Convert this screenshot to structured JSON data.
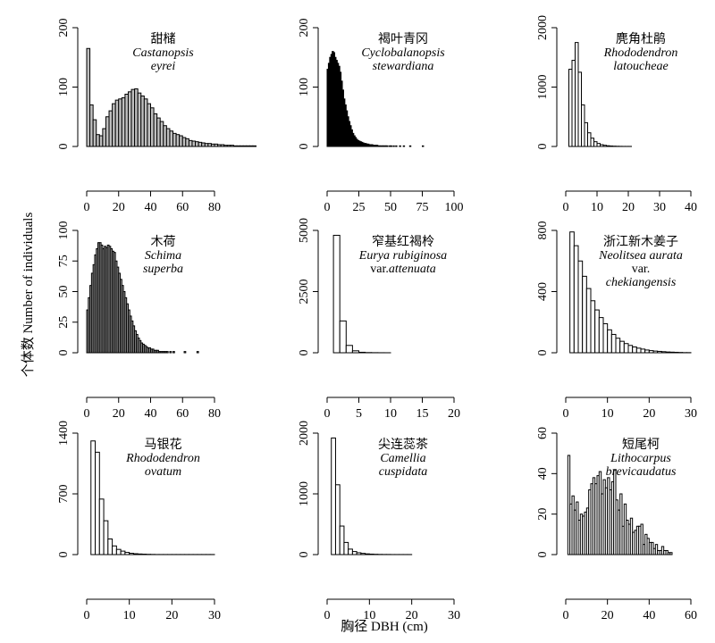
{
  "chart_data": [
    {
      "type": "bar",
      "panel": "1",
      "label_lines": [
        {
          "text": "甜槠",
          "italic": false,
          "cn": true
        },
        {
          "text": "Castanopsis",
          "italic": true
        },
        {
          "text": "eyrei",
          "italic": true
        }
      ],
      "fill": "#bfbfbf",
      "xlim": [
        0,
        80
      ],
      "ylim": [
        0,
        200
      ],
      "xticks": [
        0,
        20,
        40,
        60,
        80
      ],
      "yticks": [
        0,
        100,
        200
      ],
      "bin_start": 0,
      "bin_width": 2,
      "values": [
        165,
        70,
        45,
        20,
        18,
        30,
        50,
        60,
        72,
        78,
        80,
        82,
        88,
        92,
        96,
        97,
        90,
        85,
        80,
        72,
        65,
        55,
        48,
        42,
        35,
        30,
        26,
        22,
        20,
        18,
        15,
        13,
        10,
        9,
        8,
        7,
        6,
        5,
        5,
        4,
        4,
        3,
        3,
        2,
        2,
        2,
        1,
        1,
        1,
        1,
        1,
        1,
        1,
        0,
        0,
        0,
        0,
        0,
        0,
        0
      ]
    },
    {
      "type": "bar",
      "panel": "2",
      "label_lines": [
        {
          "text": "褐叶青冈",
          "italic": false,
          "cn": true
        },
        {
          "text": "Cyclobalanopsis",
          "italic": true
        },
        {
          "text": "stewardiana",
          "italic": true
        }
      ],
      "fill": "#000000",
      "xlim": [
        0,
        100
      ],
      "ylim": [
        0,
        200
      ],
      "xticks": [
        0,
        25,
        50,
        75,
        100
      ],
      "yticks": [
        0,
        100,
        200
      ],
      "bin_start": 0,
      "bin_width": 1,
      "values": [
        130,
        140,
        150,
        155,
        160,
        158,
        150,
        145,
        140,
        135,
        125,
        110,
        95,
        80,
        70,
        60,
        50,
        42,
        35,
        28,
        22,
        18,
        15,
        12,
        10,
        9,
        8,
        7,
        6,
        5,
        5,
        4,
        4,
        3,
        3,
        3,
        2,
        2,
        2,
        2,
        1,
        1,
        1,
        1,
        1,
        1,
        1,
        1,
        0,
        1,
        1,
        0,
        1,
        0,
        1,
        0,
        0,
        1,
        0,
        0,
        1,
        0,
        0,
        0,
        0,
        1,
        0,
        0,
        0,
        0,
        0,
        0,
        0,
        0,
        0,
        1,
        0,
        0,
        0,
        0,
        0,
        0,
        0,
        0,
        0,
        0,
        0,
        0,
        0,
        0,
        0,
        0,
        0,
        0,
        0,
        0,
        0,
        0,
        0,
        0
      ]
    },
    {
      "type": "bar",
      "panel": "3",
      "label_lines": [
        {
          "text": "麂角杜鹃",
          "italic": false,
          "cn": true
        },
        {
          "text": "Rhododendron",
          "italic": true
        },
        {
          "text": "latoucheae",
          "italic": true
        }
      ],
      "fill": "#ffffff",
      "xlim": [
        0,
        40
      ],
      "ylim": [
        0,
        2000
      ],
      "xticks": [
        0,
        10,
        20,
        30,
        40
      ],
      "yticks": [
        0,
        1000,
        2000
      ],
      "bin_start": 0,
      "bin_width": 1,
      "values": [
        0,
        1300,
        1450,
        1750,
        1250,
        700,
        400,
        230,
        140,
        80,
        50,
        30,
        20,
        12,
        8,
        5,
        3,
        2,
        1,
        1,
        1,
        0,
        0,
        0,
        0,
        0,
        0,
        0,
        0,
        0,
        0,
        0,
        0,
        0,
        0,
        0,
        0,
        0,
        0,
        0
      ]
    },
    {
      "type": "bar",
      "panel": "4",
      "label_lines": [
        {
          "text": "木荷",
          "italic": false,
          "cn": true
        },
        {
          "text": "Schima",
          "italic": true
        },
        {
          "text": "superba",
          "italic": true
        }
      ],
      "fill": "#b0b0b0",
      "xlim": [
        0,
        80
      ],
      "ylim": [
        0,
        100
      ],
      "xticks": [
        0,
        20,
        40,
        60,
        80
      ],
      "yticks": [
        0,
        25,
        50,
        75,
        100
      ],
      "bin_start": 0,
      "bin_width": 1,
      "values": [
        35,
        45,
        55,
        65,
        72,
        80,
        85,
        90,
        90,
        88,
        85,
        87,
        86,
        88,
        87,
        85,
        83,
        82,
        75,
        70,
        65,
        60,
        55,
        50,
        45,
        40,
        35,
        30,
        26,
        22,
        18,
        15,
        12,
        10,
        8,
        7,
        6,
        5,
        4,
        4,
        3,
        3,
        2,
        2,
        2,
        1,
        1,
        1,
        1,
        1,
        1,
        0,
        1,
        0,
        1,
        0,
        0,
        0,
        0,
        0,
        0,
        1,
        0,
        0,
        0,
        0,
        0,
        0,
        0,
        1,
        0,
        0,
        0,
        0,
        0,
        0,
        0,
        0,
        0,
        0
      ]
    },
    {
      "type": "bar",
      "panel": "5",
      "label_lines": [
        {
          "text": "窄基红褐柃",
          "italic": false,
          "cn": true
        },
        {
          "text": "Eurya rubiginosa",
          "italic": true
        },
        {
          "text": "var. attenuata",
          "italic": false,
          "mixed": true
        }
      ],
      "fill": "#ffffff",
      "xlim": [
        0,
        20
      ],
      "ylim": [
        0,
        5000
      ],
      "xticks": [
        0,
        5,
        10,
        15,
        20
      ],
      "yticks": [
        0,
        2500,
        5000
      ],
      "bin_start": 0,
      "bin_width": 1,
      "values": [
        0,
        4800,
        1300,
        300,
        80,
        20,
        8,
        4,
        2,
        1,
        0,
        0,
        0,
        0,
        0,
        0,
        0,
        0,
        0,
        0
      ]
    },
    {
      "type": "bar",
      "panel": "6",
      "label_lines": [
        {
          "text": "浙江新木姜子",
          "italic": false,
          "cn": true
        },
        {
          "text": "Neolitsea aurata",
          "italic": true
        },
        {
          "text": "var.",
          "italic": false
        },
        {
          "text": "chekiangensis",
          "italic": true
        }
      ],
      "fill": "#ffffff",
      "xlim": [
        0,
        30
      ],
      "ylim": [
        0,
        800
      ],
      "xticks": [
        0,
        10,
        20,
        30
      ],
      "yticks": [
        0,
        400,
        800
      ],
      "bin_start": 0,
      "bin_width": 1,
      "values": [
        0,
        790,
        700,
        600,
        500,
        420,
        340,
        280,
        230,
        190,
        150,
        120,
        95,
        75,
        60,
        48,
        38,
        30,
        24,
        18,
        14,
        11,
        9,
        7,
        5,
        4,
        3,
        2,
        1,
        1
      ]
    },
    {
      "type": "bar",
      "panel": "7",
      "label_lines": [
        {
          "text": "马银花",
          "italic": false,
          "cn": true
        },
        {
          "text": "Rhododendron",
          "italic": true
        },
        {
          "text": "ovatum",
          "italic": true
        }
      ],
      "fill": "#ffffff",
      "xlim": [
        0,
        30
      ],
      "ylim": [
        0,
        1400
      ],
      "xticks": [
        0,
        10,
        20,
        30
      ],
      "yticks": [
        0,
        700,
        1400
      ],
      "bin_start": 0,
      "bin_width": 1,
      "values": [
        0,
        1310,
        1180,
        640,
        390,
        180,
        100,
        60,
        40,
        25,
        15,
        10,
        7,
        5,
        3,
        2,
        1,
        1,
        1,
        1,
        1,
        1,
        1,
        1,
        1,
        1,
        1,
        1,
        1,
        1
      ]
    },
    {
      "type": "bar",
      "panel": "8",
      "label_lines": [
        {
          "text": "尖连蕊茶",
          "italic": false,
          "cn": true
        },
        {
          "text": "Camellia",
          "italic": true
        },
        {
          "text": "cuspidata",
          "italic": true
        }
      ],
      "fill": "#ffffff",
      "xlim": [
        0,
        30
      ],
      "ylim": [
        0,
        2000
      ],
      "xticks": [
        0,
        10,
        20,
        30
      ],
      "yticks": [
        0,
        1000,
        2000
      ],
      "bin_start": 0,
      "bin_width": 1,
      "values": [
        0,
        1920,
        1150,
        470,
        200,
        90,
        50,
        30,
        20,
        12,
        8,
        5,
        3,
        2,
        2,
        1,
        1,
        1,
        1,
        1,
        0,
        0,
        0,
        0,
        0,
        0,
        0,
        0,
        0,
        0
      ]
    },
    {
      "type": "bar",
      "panel": "9",
      "label_lines": [
        {
          "text": "短尾柯",
          "italic": false,
          "cn": true
        },
        {
          "text": "Lithocarpus",
          "italic": true
        },
        {
          "text": "brevicaudatus",
          "italic": true
        }
      ],
      "fill": "#ffffff",
      "xlim": [
        0,
        60
      ],
      "ylim": [
        0,
        60
      ],
      "xticks": [
        0,
        20,
        40,
        60
      ],
      "yticks": [
        0,
        20,
        40,
        60
      ],
      "bin_start": 0,
      "bin_width": 1,
      "values": [
        0,
        49,
        25,
        29,
        22,
        26,
        17,
        20,
        19,
        21,
        23,
        32,
        35,
        38,
        35,
        39,
        41,
        30,
        37,
        33,
        38,
        32,
        36,
        42,
        27,
        22,
        30,
        14,
        25,
        17,
        15,
        18,
        11,
        12,
        14,
        14,
        15,
        5,
        10,
        8,
        6,
        6,
        3,
        5,
        2,
        2,
        4,
        2,
        2,
        1,
        1,
        0,
        0,
        0,
        0,
        0,
        0,
        0,
        0,
        0
      ]
    }
  ],
  "axis_titles": {
    "y": "个体数 Number of individuals",
    "x": "胸径 DBH (cm)"
  }
}
